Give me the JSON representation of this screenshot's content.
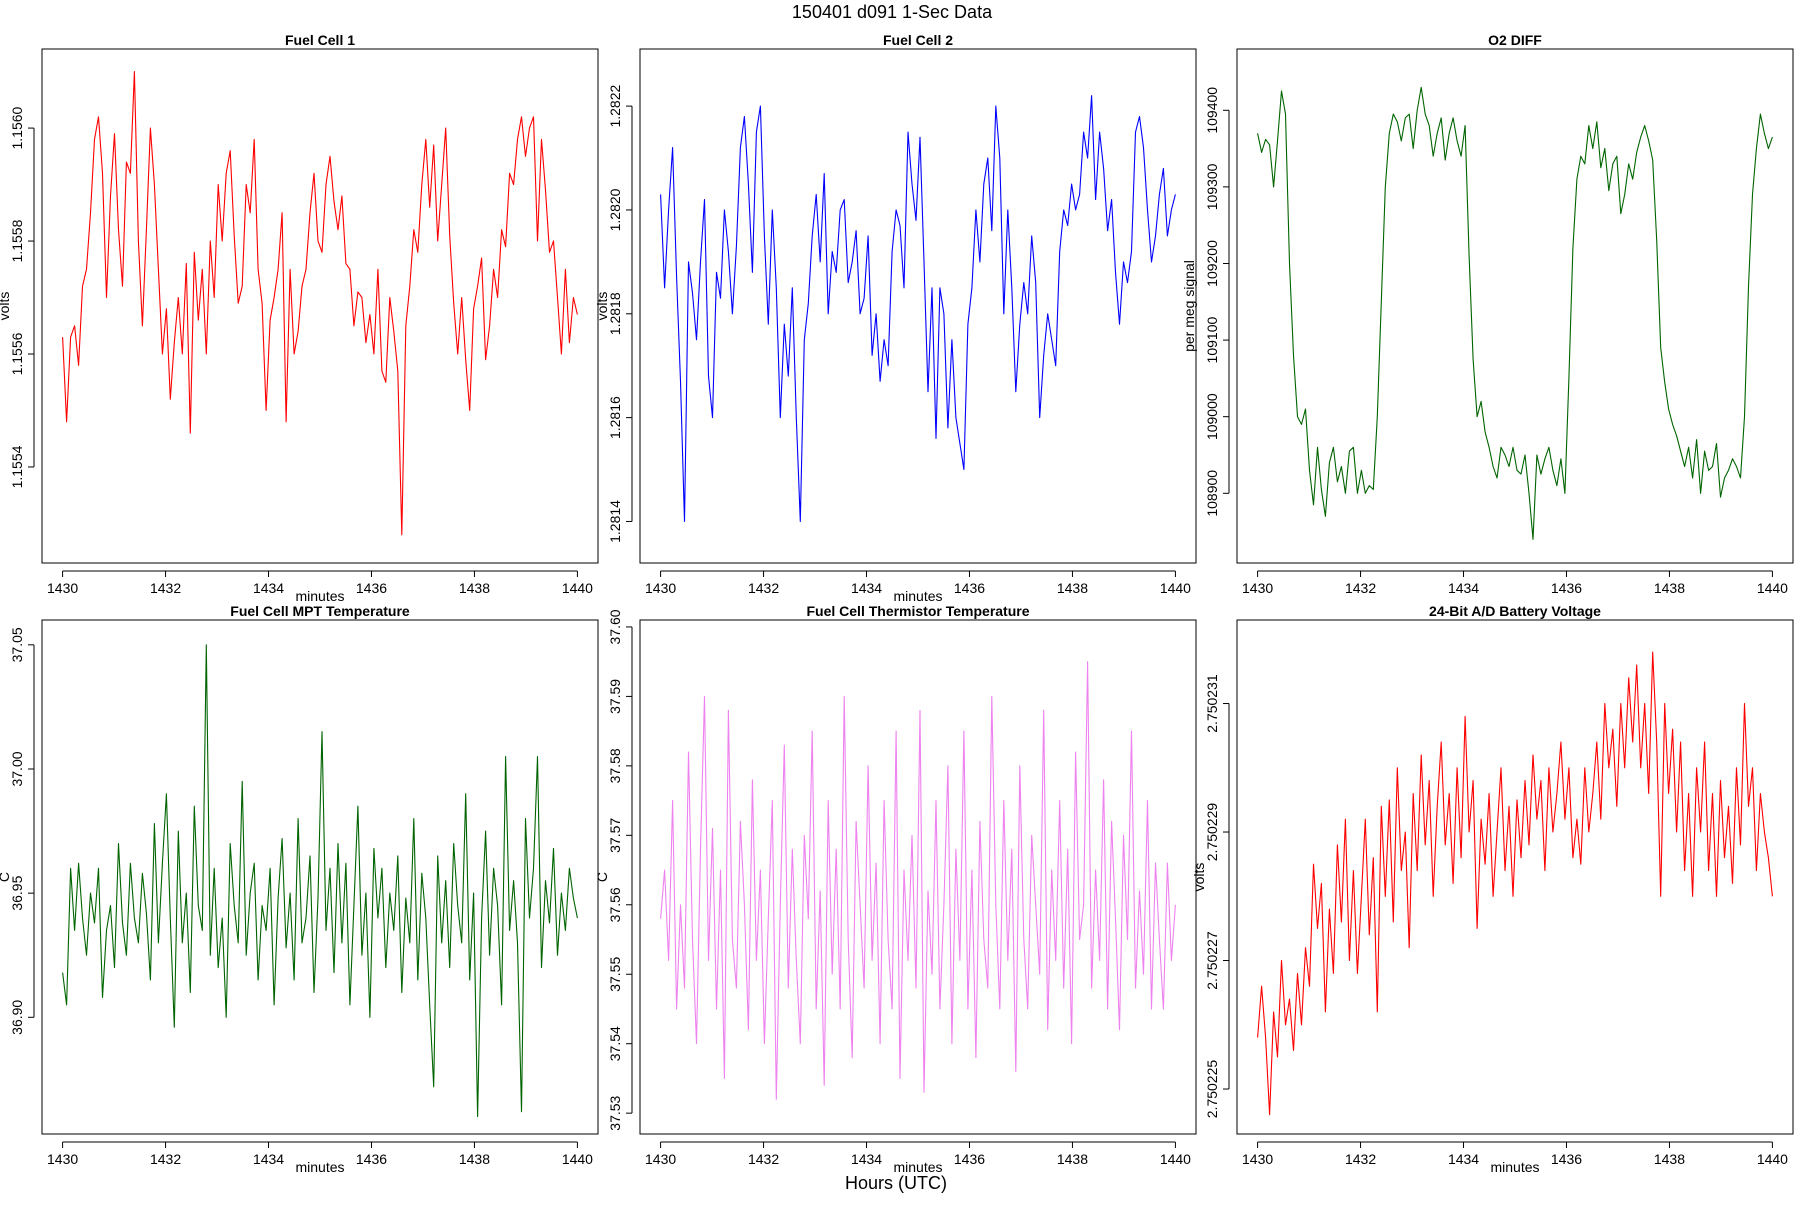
{
  "figure": {
    "title": "150401    d091    1-Sec Data",
    "footer": "Hours (UTC)"
  },
  "chart_data": [
    {
      "type": "line",
      "title": "Fuel Cell 1",
      "xlabel": "minutes",
      "ylabel": "volts",
      "color": "#ff0000",
      "xlim": [
        1429.6,
        1440.4
      ],
      "ylim": [
        1.15523,
        1.15614
      ],
      "xticks": [
        "1430",
        "1432",
        "1434",
        "1436",
        "1438",
        "1440"
      ],
      "yticks": [
        "1.1554",
        "1.1556",
        "1.1558",
        "1.1560"
      ],
      "ytick_values": [
        1.1554,
        1.1556,
        1.1558,
        1.156
      ],
      "x_start": 1430,
      "x_end": 1440,
      "values": [
        1.15563,
        1.15548,
        1.15563,
        1.15565,
        1.15558,
        1.15572,
        1.15575,
        1.15585,
        1.15598,
        1.15602,
        1.15592,
        1.1557,
        1.15588,
        1.15599,
        1.15582,
        1.15572,
        1.15594,
        1.15592,
        1.1561,
        1.1558,
        1.15565,
        1.15582,
        1.156,
        1.1559,
        1.15575,
        1.1556,
        1.15568,
        1.15552,
        1.15562,
        1.1557,
        1.1556,
        1.15576,
        1.15546,
        1.15578,
        1.15566,
        1.15575,
        1.1556,
        1.1558,
        1.1557,
        1.1559,
        1.1558,
        1.15592,
        1.15596,
        1.15581,
        1.15569,
        1.15572,
        1.1559,
        1.15585,
        1.15598,
        1.15575,
        1.15569,
        1.1555,
        1.15566,
        1.1557,
        1.15575,
        1.15585,
        1.15548,
        1.15575,
        1.1556,
        1.15564,
        1.15572,
        1.15575,
        1.15585,
        1.15592,
        1.1558,
        1.15578,
        1.1559,
        1.15595,
        1.15587,
        1.15582,
        1.15588,
        1.15576,
        1.15575,
        1.15565,
        1.15571,
        1.1557,
        1.15562,
        1.15567,
        1.1556,
        1.15575,
        1.15557,
        1.15555,
        1.1557,
        1.15564,
        1.15557,
        1.15528,
        1.15565,
        1.15572,
        1.15582,
        1.15578,
        1.1559,
        1.15598,
        1.15586,
        1.15597,
        1.1558,
        1.1559,
        1.156,
        1.15581,
        1.15569,
        1.1556,
        1.1557,
        1.15559,
        1.1555,
        1.15568,
        1.15572,
        1.15577,
        1.15559,
        1.15565,
        1.15575,
        1.1557,
        1.15582,
        1.15579,
        1.15592,
        1.1559,
        1.15598,
        1.15602,
        1.15595,
        1.156,
        1.15602,
        1.1558,
        1.15598,
        1.15589,
        1.15578,
        1.1558,
        1.1557,
        1.1556,
        1.15575,
        1.15562,
        1.1557,
        1.15567
      ]
    },
    {
      "type": "line",
      "title": "Fuel Cell 2",
      "xlabel": "minutes",
      "ylabel": "volts",
      "color": "#0000ff",
      "xlim": [
        1429.6,
        1440.4
      ],
      "ylim": [
        1.28132,
        1.28231
      ],
      "xticks": [
        "1430",
        "1432",
        "1434",
        "1436",
        "1438",
        "1440"
      ],
      "yticks": [
        "1.2814",
        "1.2816",
        "1.2818",
        "1.2820",
        "1.2822"
      ],
      "ytick_values": [
        1.2814,
        1.2816,
        1.2818,
        1.282,
        1.2822
      ],
      "x_start": 1430,
      "x_end": 1440,
      "values": [
        1.28203,
        1.28185,
        1.282,
        1.28212,
        1.28187,
        1.28167,
        1.2814,
        1.2819,
        1.28184,
        1.28175,
        1.2819,
        1.28202,
        1.28168,
        1.2816,
        1.28188,
        1.28183,
        1.282,
        1.28192,
        1.2818,
        1.28193,
        1.28212,
        1.28218,
        1.28205,
        1.28188,
        1.28215,
        1.2822,
        1.28195,
        1.28178,
        1.282,
        1.28185,
        1.2816,
        1.28178,
        1.28168,
        1.28185,
        1.2816,
        1.2814,
        1.28175,
        1.28182,
        1.28195,
        1.28203,
        1.2819,
        1.28207,
        1.2818,
        1.28192,
        1.28188,
        1.282,
        1.28202,
        1.28186,
        1.2819,
        1.28196,
        1.2818,
        1.28183,
        1.28195,
        1.28172,
        1.2818,
        1.28167,
        1.28175,
        1.2817,
        1.28192,
        1.282,
        1.28197,
        1.28185,
        1.28215,
        1.28205,
        1.28198,
        1.28214,
        1.2819,
        1.28165,
        1.28185,
        1.28156,
        1.28185,
        1.2818,
        1.28158,
        1.28175,
        1.2816,
        1.28155,
        1.2815,
        1.28178,
        1.28185,
        1.282,
        1.2819,
        1.28205,
        1.2821,
        1.28196,
        1.2822,
        1.2821,
        1.2818,
        1.282,
        1.28185,
        1.28165,
        1.28178,
        1.28186,
        1.2818,
        1.28195,
        1.28186,
        1.2816,
        1.28172,
        1.2818,
        1.28175,
        1.2817,
        1.28192,
        1.282,
        1.28197,
        1.28205,
        1.282,
        1.28203,
        1.28215,
        1.2821,
        1.28222,
        1.28202,
        1.28215,
        1.28208,
        1.28196,
        1.28202,
        1.28188,
        1.28178,
        1.2819,
        1.28186,
        1.28192,
        1.28215,
        1.28218,
        1.28212,
        1.282,
        1.2819,
        1.28195,
        1.28203,
        1.28208,
        1.28195,
        1.282,
        1.28203
      ]
    },
    {
      "type": "line",
      "title": "O2 DIFF",
      "xlabel": "",
      "ylabel": "per meg signal",
      "color": "#006400",
      "xlim": [
        1429.6,
        1440.4
      ],
      "ylim": [
        108809,
        109480
      ],
      "xticks": [
        "1430",
        "1432",
        "1434",
        "1436",
        "1438",
        "1440"
      ],
      "yticks": [
        "108900",
        "109000",
        "109100",
        "109200",
        "109300",
        "109400"
      ],
      "ytick_values": [
        108900,
        109000,
        109100,
        109200,
        109300,
        109400
      ],
      "x_start": 1430,
      "x_end": 1440,
      "values": [
        109370,
        109345,
        109362,
        109355,
        109300,
        109360,
        109425,
        109395,
        109200,
        109080,
        109000,
        108990,
        109010,
        108930,
        108885,
        108960,
        108905,
        108870,
        108940,
        108960,
        108915,
        108935,
        108900,
        108955,
        108960,
        108900,
        108930,
        108900,
        108910,
        108905,
        109000,
        109150,
        109300,
        109370,
        109395,
        109385,
        109360,
        109390,
        109395,
        109350,
        109400,
        109430,
        109395,
        109380,
        109340,
        109370,
        109390,
        109335,
        109370,
        109390,
        109360,
        109340,
        109380,
        109210,
        109075,
        109000,
        109020,
        108980,
        108960,
        108935,
        108920,
        108960,
        108950,
        108935,
        108960,
        108930,
        108925,
        108950,
        108900,
        108840,
        108950,
        108925,
        108945,
        108960,
        108930,
        108910,
        108945,
        108900,
        109050,
        109220,
        109310,
        109340,
        109330,
        109380,
        109350,
        109385,
        109325,
        109350,
        109295,
        109330,
        109340,
        109265,
        109290,
        109330,
        109310,
        109345,
        109365,
        109380,
        109360,
        109335,
        109230,
        109090,
        109045,
        109010,
        108990,
        108975,
        108955,
        108935,
        108960,
        108920,
        108970,
        108900,
        108955,
        108930,
        108935,
        108965,
        108895,
        108920,
        108930,
        108945,
        108935,
        108920,
        109000,
        109170,
        109290,
        109350,
        109395,
        109370,
        109350,
        109365
      ]
    },
    {
      "type": "line",
      "title": "Fuel Cell MPT Temperature",
      "xlabel": "minutes",
      "ylabel": "C",
      "color": "#006400",
      "xlim": [
        1429.6,
        1440.4
      ],
      "ylim": [
        36.853,
        37.06
      ],
      "xticks": [
        "1430",
        "1432",
        "1434",
        "1436",
        "1438",
        "1440"
      ],
      "yticks": [
        "36.90",
        "36.95",
        "37.00",
        "37.05"
      ],
      "ytick_values": [
        36.9,
        36.95,
        37.0,
        37.05
      ],
      "x_start": 1430,
      "x_end": 1440,
      "values": [
        36.918,
        36.905,
        36.96,
        36.935,
        36.962,
        36.94,
        36.925,
        36.95,
        36.938,
        36.96,
        36.908,
        36.935,
        36.945,
        36.92,
        36.97,
        36.938,
        36.925,
        36.962,
        36.94,
        36.93,
        36.958,
        36.942,
        36.915,
        36.978,
        36.93,
        36.962,
        36.99,
        36.94,
        36.896,
        36.975,
        36.93,
        36.95,
        36.91,
        36.985,
        36.945,
        36.935,
        37.05,
        36.925,
        36.96,
        36.92,
        36.94,
        36.9,
        36.97,
        36.945,
        36.93,
        36.995,
        36.925,
        36.95,
        36.962,
        36.915,
        36.945,
        36.935,
        36.96,
        36.905,
        36.948,
        36.972,
        36.928,
        36.95,
        36.915,
        36.98,
        36.93,
        36.94,
        36.965,
        36.91,
        36.948,
        37.015,
        36.935,
        36.96,
        36.918,
        36.97,
        36.93,
        36.962,
        36.905,
        36.945,
        36.985,
        36.925,
        36.95,
        36.9,
        36.968,
        36.94,
        36.96,
        36.92,
        36.95,
        36.935,
        36.965,
        36.91,
        36.948,
        36.93,
        36.98,
        36.915,
        36.958,
        36.94,
        36.905,
        36.872,
        36.965,
        36.93,
        36.955,
        36.92,
        36.97,
        36.945,
        36.93,
        36.99,
        36.915,
        36.95,
        36.86,
        36.94,
        36.975,
        36.925,
        36.96,
        36.945,
        36.905,
        37.005,
        36.935,
        36.955,
        36.93,
        36.862,
        36.98,
        36.94,
        36.96,
        37.005,
        36.92,
        36.955,
        36.938,
        36.968,
        36.925,
        36.95,
        36.935,
        36.96,
        36.948,
        36.94
      ]
    },
    {
      "type": "line",
      "title": "Fuel Cell Thermistor Temperature",
      "xlabel": "minutes",
      "ylabel": "C",
      "color": "#ee82ee",
      "xlim": [
        1429.6,
        1440.4
      ],
      "ylim": [
        37.527,
        37.601
      ],
      "xticks": [
        "1430",
        "1432",
        "1434",
        "1436",
        "1438",
        "1440"
      ],
      "yticks": [
        "37.53",
        "37.54",
        "37.55",
        "37.56",
        "37.57",
        "37.58",
        "37.59",
        "37.60"
      ],
      "ytick_values": [
        37.53,
        37.54,
        37.55,
        37.56,
        37.57,
        37.58,
        37.59,
        37.6
      ],
      "x_start": 1430,
      "x_end": 1440,
      "values": [
        37.558,
        37.565,
        37.552,
        37.575,
        37.545,
        37.56,
        37.548,
        37.582,
        37.555,
        37.54,
        37.568,
        37.59,
        37.552,
        37.571,
        37.545,
        37.565,
        37.535,
        37.588,
        37.555,
        37.548,
        37.572,
        37.56,
        37.542,
        37.578,
        37.552,
        37.565,
        37.54,
        37.558,
        37.575,
        37.532,
        37.56,
        37.583,
        37.548,
        37.568,
        37.552,
        37.54,
        37.57,
        37.558,
        37.585,
        37.545,
        37.562,
        37.534,
        37.575,
        37.55,
        37.568,
        37.545,
        37.59,
        37.555,
        37.538,
        37.572,
        37.56,
        37.548,
        37.58,
        37.552,
        37.566,
        37.54,
        37.575,
        37.555,
        37.545,
        37.585,
        37.535,
        37.565,
        37.552,
        37.57,
        37.548,
        37.588,
        37.533,
        37.562,
        37.55,
        37.575,
        37.545,
        37.56,
        37.58,
        37.54,
        37.568,
        37.552,
        37.585,
        37.545,
        37.565,
        37.538,
        37.572,
        37.555,
        37.548,
        37.59,
        37.56,
        37.545,
        37.575,
        37.552,
        37.568,
        37.536,
        37.58,
        37.555,
        37.545,
        37.57,
        37.56,
        37.55,
        37.588,
        37.542,
        37.565,
        37.552,
        37.575,
        37.548,
        37.568,
        37.54,
        37.582,
        37.555,
        37.56,
        37.595,
        37.548,
        37.565,
        37.552,
        37.578,
        37.545,
        37.572,
        37.558,
        37.542,
        37.57,
        37.555,
        37.585,
        37.548,
        37.562,
        37.55,
        37.575,
        37.545,
        37.566,
        37.555,
        37.545,
        37.566,
        37.552,
        37.56
      ]
    },
    {
      "type": "line",
      "title": "24-Bit A/D Battery Voltage",
      "xlabel": "minutes",
      "ylabel": "volts",
      "color": "#ff0000",
      "xlim": [
        1429.6,
        1440.4
      ],
      "ylim": [
        2.7502243,
        2.7502323
      ],
      "xticks": [
        "1430",
        "1432",
        "1434",
        "1436",
        "1438",
        "1440"
      ],
      "yticks": [
        "2.750225",
        "2.750227",
        "2.750229",
        "2.750231"
      ],
      "ytick_values": [
        2.750225,
        2.750227,
        2.750229,
        2.750231
      ],
      "x_start": 1430,
      "x_end": 1440,
      "values": [
        2.7502258,
        2.7502266,
        2.7502258,
        2.7502246,
        2.7502262,
        2.7502255,
        2.750227,
        2.750226,
        2.7502264,
        2.7502256,
        2.7502268,
        2.750226,
        2.7502272,
        2.7502266,
        2.7502285,
        2.7502275,
        2.7502282,
        2.7502262,
        2.7502278,
        2.7502268,
        2.7502288,
        2.7502276,
        2.7502292,
        2.750227,
        2.7502284,
        2.7502268,
        2.750228,
        2.7502292,
        2.7502274,
        2.7502286,
        2.7502262,
        2.7502294,
        2.750228,
        2.7502295,
        2.7502276,
        2.75023,
        2.7502284,
        2.750229,
        2.7502272,
        2.7502296,
        2.7502284,
        2.7502302,
        2.7502288,
        2.7502298,
        2.750228,
        2.7502294,
        2.7502304,
        2.7502288,
        2.7502296,
        2.7502282,
        2.75023,
        2.7502286,
        2.7502308,
        2.750229,
        2.7502298,
        2.7502275,
        2.7502292,
        2.7502285,
        2.7502296,
        2.750228,
        2.750229,
        2.75023,
        2.7502284,
        2.7502294,
        2.750228,
        2.7502295,
        2.7502286,
        2.7502298,
        2.7502288,
        2.7502302,
        2.7502292,
        2.7502298,
        2.7502284,
        2.75023,
        2.750229,
        2.7502296,
        2.7502304,
        2.7502292,
        2.75023,
        2.7502286,
        2.7502292,
        2.7502285,
        2.75023,
        2.750229,
        2.7502296,
        2.7502304,
        2.7502292,
        2.750231,
        2.75023,
        2.7502306,
        2.7502294,
        2.750231,
        2.75023,
        2.7502314,
        2.7502304,
        2.7502316,
        2.75023,
        2.750231,
        2.7502296,
        2.7502318,
        2.7502304,
        2.750228,
        2.750231,
        2.7502296,
        2.7502306,
        2.750229,
        2.7502304,
        2.7502284,
        2.7502296,
        2.750228,
        2.75023,
        2.750229,
        2.7502304,
        2.7502284,
        2.7502296,
        2.750228,
        2.7502298,
        2.7502286,
        2.7502294,
        2.7502282,
        2.75023,
        2.7502288,
        2.750231,
        2.7502294,
        2.75023,
        2.7502284,
        2.7502296,
        2.750229,
        2.7502286,
        2.750228
      ]
    }
  ]
}
